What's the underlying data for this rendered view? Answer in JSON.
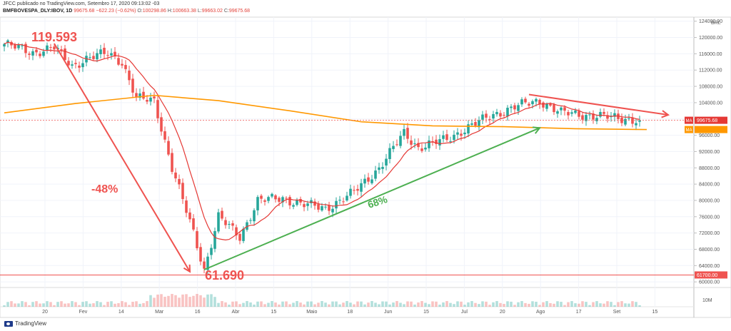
{
  "header": {
    "line1": "JFCC publicado no TradingView.com, Setembro 17, 2020 09:13:02 -03",
    "symbol": "BMFBOVESPA_DLY:IBOV, 1D",
    "last": "99675.68",
    "change": "−622.23 (−0.62%)",
    "open_label": "O:",
    "open": "100298.86",
    "high_label": "H:",
    "high": "100663.38",
    "low_label": "L:",
    "low": "99663.02",
    "close_label": "C:",
    "close": "99675.68"
  },
  "brand": {
    "name": "TradingView"
  },
  "colors": {
    "up": "#26a69a",
    "down": "#ef5350",
    "ma_short": "#e53935",
    "ma_long": "#ff9800",
    "trend_up": "#4caf50",
    "annotation_red": "#ef5350"
  },
  "chart_data": {
    "type": "candlestick",
    "currency_label": "BRL",
    "x_tick_labels": [
      "20",
      "Fev",
      "14",
      "Mar",
      "16",
      "Abr",
      "15",
      "Maio",
      "18",
      "Jun",
      "15",
      "Jul",
      "20",
      "Ago",
      "17",
      "Set",
      "15"
    ],
    "y_tick_labels": [
      "124000.00",
      "120000.00",
      "116000.00",
      "112000.00",
      "108000.00",
      "104000.00",
      "100000.00",
      "96000.00",
      "92000.00",
      "88000.00",
      "84000.00",
      "80000.00",
      "76000.00",
      "72000.00",
      "68000.00",
      "64000.00",
      "60000.00"
    ],
    "ylim": [
      59500,
      125000
    ],
    "volume_axis_label": "10M",
    "price_badges": [
      {
        "label": "MA",
        "value": "99675.68",
        "kind": "ma_short"
      },
      {
        "label": "MA",
        "value": "",
        "kind": "ma_long"
      },
      {
        "label": "",
        "value": "61700.00",
        "kind": "support"
      }
    ],
    "key_levels": {
      "last": 99675.68,
      "support": 61700
    },
    "path_points": [
      {
        "i": 0,
        "v": 118400
      },
      {
        "i": 8,
        "v": 116300
      },
      {
        "i": 14,
        "v": 117500
      },
      {
        "i": 19,
        "v": 113000
      },
      {
        "i": 23,
        "v": 114800
      },
      {
        "i": 29,
        "v": 116200
      },
      {
        "i": 33,
        "v": 114000
      },
      {
        "i": 37,
        "v": 105000
      },
      {
        "i": 42,
        "v": 104500
      },
      {
        "i": 47,
        "v": 88000
      },
      {
        "i": 53,
        "v": 72000
      },
      {
        "i": 56,
        "v": 63000
      },
      {
        "i": 60,
        "v": 76000
      },
      {
        "i": 66,
        "v": 71000
      },
      {
        "i": 71,
        "v": 80000
      },
      {
        "i": 78,
        "v": 80500
      },
      {
        "i": 84,
        "v": 79000
      },
      {
        "i": 90,
        "v": 78000
      },
      {
        "i": 98,
        "v": 82000
      },
      {
        "i": 105,
        "v": 88000
      },
      {
        "i": 112,
        "v": 96500
      },
      {
        "i": 116,
        "v": 93000
      },
      {
        "i": 124,
        "v": 95000
      },
      {
        "i": 130,
        "v": 98000
      },
      {
        "i": 137,
        "v": 101000
      },
      {
        "i": 143,
        "v": 103000
      },
      {
        "i": 150,
        "v": 104500
      },
      {
        "i": 156,
        "v": 101500
      },
      {
        "i": 165,
        "v": 100800
      },
      {
        "i": 172,
        "v": 100200
      },
      {
        "i": 178,
        "v": 99675
      }
    ],
    "ma_long_points": [
      {
        "i": 0,
        "v": 101500
      },
      {
        "i": 20,
        "v": 103800
      },
      {
        "i": 42,
        "v": 105800
      },
      {
        "i": 60,
        "v": 104500
      },
      {
        "i": 80,
        "v": 102000
      },
      {
        "i": 100,
        "v": 99300
      },
      {
        "i": 120,
        "v": 98300
      },
      {
        "i": 140,
        "v": 98100
      },
      {
        "i": 160,
        "v": 97600
      },
      {
        "i": 180,
        "v": 97400
      }
    ],
    "annotations": [
      {
        "text": "119.593",
        "color": "red"
      },
      {
        "text": "-48%",
        "color": "red"
      },
      {
        "text": "61.690",
        "color": "red"
      },
      {
        "text": "68%",
        "color": "green"
      }
    ],
    "trend_lines": [
      {
        "kind": "decline",
        "from": {
          "i": 14,
          "v": 118500
        },
        "to": {
          "i": 52,
          "v": 62500
        },
        "color": "red",
        "arrow": true
      },
      {
        "kind": "rise",
        "from": {
          "i": 56,
          "v": 63000
        },
        "to": {
          "i": 150,
          "v": 97800
        },
        "color": "green",
        "arrow": true
      },
      {
        "kind": "channel",
        "from": {
          "i": 147,
          "v": 106000
        },
        "to": {
          "i": 186,
          "v": 101000
        },
        "color": "red",
        "arrow": true
      }
    ]
  }
}
